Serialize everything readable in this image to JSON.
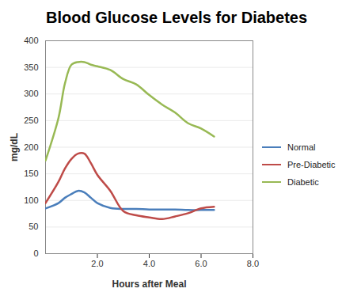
{
  "chart_data": {
    "type": "line",
    "title": "Blood Glucose Levels for Diabetes",
    "x_label": "Hours after Meal",
    "y_label": "mg/dL",
    "x": [
      0,
      0.5,
      0.75,
      1.0,
      1.25,
      1.5,
      1.75,
      2.0,
      2.5,
      3.0,
      3.5,
      4.0,
      4.5,
      5.0,
      5.5,
      6.0,
      6.5
    ],
    "series": [
      {
        "name": "Normal",
        "color": "#4a7ebb",
        "values": [
          85,
          95,
          105,
          112,
          118,
          115,
          105,
          95,
          86,
          84,
          84,
          83,
          83,
          83,
          82,
          82,
          82
        ]
      },
      {
        "name": "Pre-Diabetic",
        "color": "#be4b48",
        "values": [
          95,
          135,
          160,
          178,
          188,
          188,
          170,
          148,
          118,
          80,
          72,
          68,
          65,
          70,
          76,
          85,
          88
        ]
      },
      {
        "name": "Diabetic",
        "color": "#98b954",
        "values": [
          175,
          255,
          320,
          355,
          360,
          360,
          355,
          352,
          345,
          328,
          318,
          298,
          280,
          265,
          245,
          235,
          220
        ]
      }
    ],
    "xlim": [
      0,
      8
    ],
    "xticks": [
      {
        "value": 2,
        "label": "2.0"
      },
      {
        "value": 4,
        "label": "4.0"
      },
      {
        "value": 6,
        "label": "6.0"
      },
      {
        "value": 8,
        "label": "8.0"
      }
    ],
    "ylim": [
      0,
      400
    ],
    "yticks": [
      0,
      50,
      100,
      150,
      200,
      250,
      300,
      350,
      400
    ],
    "grid": true,
    "legend": "right"
  }
}
